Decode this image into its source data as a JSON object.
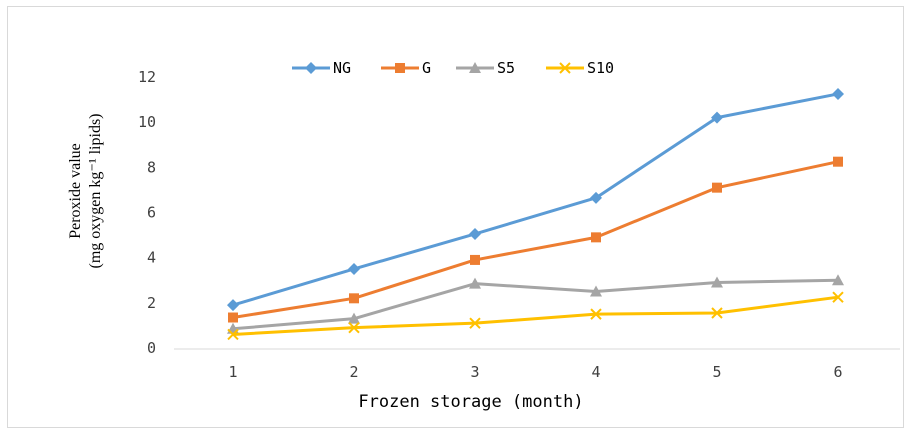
{
  "chart_data": {
    "type": "line",
    "x": [
      1,
      2,
      3,
      4,
      5,
      6
    ],
    "xlabel": "Frozen storage (month)",
    "ylabel_line1": "Peroxide value",
    "ylabel_line2": "(mg oxygen kg⁻¹ lipids)",
    "ylim": [
      0,
      12
    ],
    "yticks": [
      0,
      2,
      4,
      6,
      8,
      10,
      12
    ],
    "grid": false,
    "legend_position": "top",
    "series": [
      {
        "name": "NG",
        "color": "#5B9BD5",
        "marker": "diamond",
        "values": [
          1.9,
          3.5,
          5.05,
          6.65,
          10.2,
          11.25
        ]
      },
      {
        "name": "G",
        "color": "#ED7D31",
        "marker": "square",
        "values": [
          1.35,
          2.2,
          3.9,
          4.9,
          7.1,
          8.25
        ]
      },
      {
        "name": "S5",
        "color": "#A5A5A5",
        "marker": "triangle",
        "values": [
          0.85,
          1.3,
          2.85,
          2.5,
          2.9,
          3.0
        ]
      },
      {
        "name": "S10",
        "color": "#FFC000",
        "marker": "x",
        "values": [
          0.6,
          0.9,
          1.1,
          1.5,
          1.55,
          2.25
        ]
      }
    ]
  }
}
